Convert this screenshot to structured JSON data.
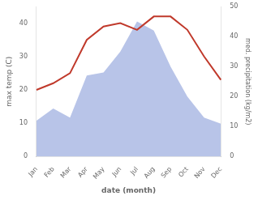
{
  "chart_data": {
    "type": "line",
    "categories": [
      "Jan",
      "Feb",
      "Mar",
      "Apr",
      "May",
      "Jun",
      "Jul",
      "Aug",
      "Sep",
      "Oct",
      "Nov",
      "Dec"
    ],
    "series": [
      {
        "type": "line",
        "color": "#c0392b",
        "values": [
          20,
          22,
          25,
          35,
          39,
          40,
          38,
          42,
          42,
          38,
          30,
          23
        ]
      },
      {
        "type": "area",
        "color": "#b8c4e8",
        "axis": "y2",
        "values": [
          12,
          16,
          13,
          27,
          28,
          35,
          45,
          42,
          30,
          20,
          13,
          11
        ]
      }
    ],
    "xlabel": "date (month)",
    "ylabel": "max temp (C)",
    "y2label": "med. precipitation (kg/m2)",
    "ylim": [
      0,
      45
    ],
    "yticks": [
      0,
      10,
      20,
      30,
      40
    ],
    "y2lim": [
      0,
      50
    ],
    "y2ticks": [
      0,
      10,
      20,
      30,
      40,
      50
    ],
    "grid": false
  }
}
